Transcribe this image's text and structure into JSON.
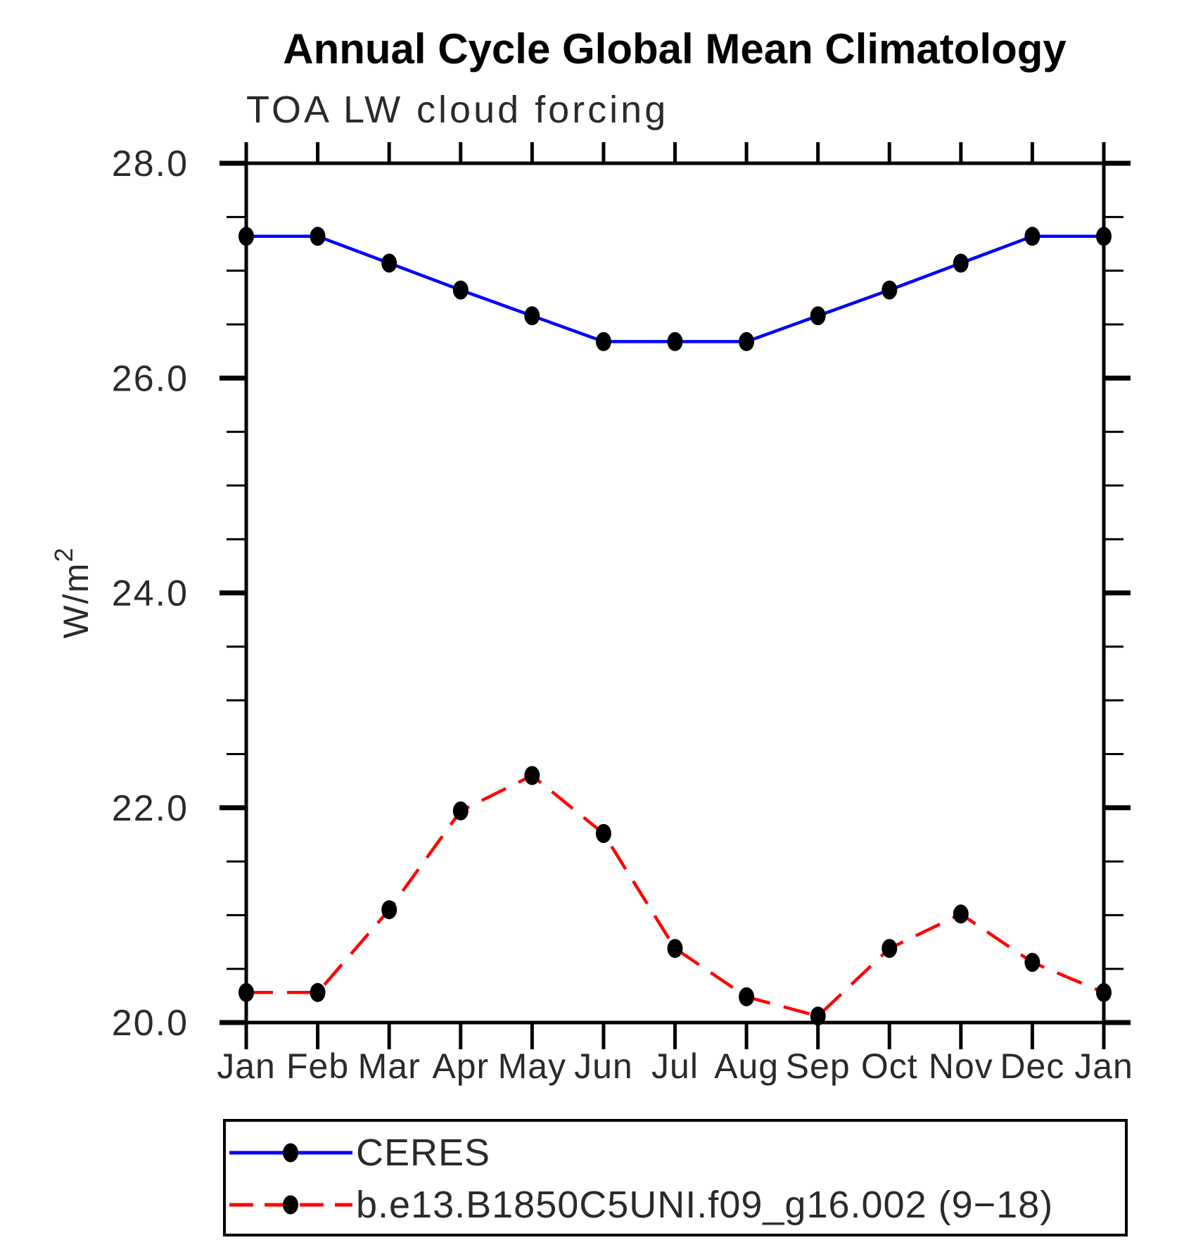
{
  "title": "Annual Cycle Global Mean Climatology",
  "subtitle": "TOA LW cloud forcing",
  "colors": {
    "ceres_line": "#0000ff",
    "model_line": "#ff0000",
    "marker": "#000000",
    "axis": "#000000"
  },
  "chart_data": {
    "type": "line",
    "categories": [
      "Jan",
      "Feb",
      "Mar",
      "Apr",
      "May",
      "Jun",
      "Jul",
      "Aug",
      "Sep",
      "Oct",
      "Nov",
      "Dec",
      "Jan"
    ],
    "series": [
      {
        "name": "CERES",
        "color": "#0000ff",
        "line_style": "solid",
        "marker": "filled-circle",
        "values": [
          27.32,
          27.32,
          27.07,
          26.82,
          26.58,
          26.34,
          26.34,
          26.34,
          26.58,
          26.82,
          27.07,
          27.32,
          27.32
        ]
      },
      {
        "name": "b.e13.B1850C5UNI.f09_g16.002 (9−18)",
        "color": "#ff0000",
        "line_style": "dashed",
        "marker": "filled-circle",
        "values": [
          20.28,
          20.28,
          21.05,
          21.97,
          22.3,
          21.76,
          20.69,
          20.24,
          20.06,
          20.69,
          21.01,
          20.56,
          20.28
        ]
      }
    ],
    "xlabel": "",
    "ylabel": {
      "base": "W/m",
      "sup": "2"
    },
    "ylim": [
      20.0,
      28.0
    ],
    "ytick_step": 2.0,
    "yminor_step": 0.5,
    "ytick_labels": [
      "28.0",
      "26.0",
      "24.0",
      "22.0",
      "20.0"
    ],
    "grid": "off",
    "legend_position": "bottom-left"
  }
}
